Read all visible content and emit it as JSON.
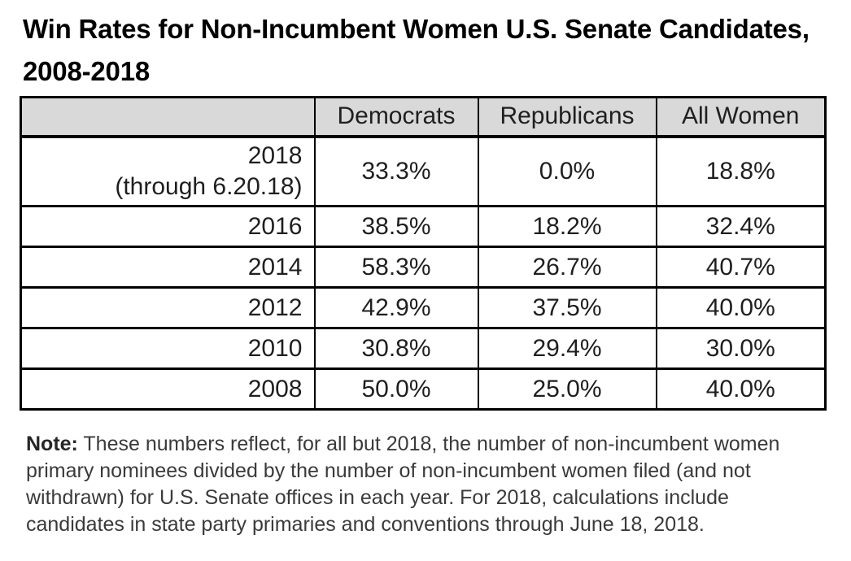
{
  "title": {
    "line1": "Win Rates for Non-Incumbent Women U.S. Senate Candidates,",
    "line2": "2008-2018"
  },
  "table": {
    "header_bg": "#d9d9d9",
    "border_color": "#000000",
    "columns": [
      "",
      "Democrats",
      "Republicans",
      "All Women"
    ],
    "rows": [
      {
        "year": "2018",
        "year_note": "(through 6.20.18)",
        "democrats": "33.3%",
        "republicans": "0.0%",
        "all_women": "18.8%"
      },
      {
        "year": "2016",
        "year_note": "",
        "democrats": "38.5%",
        "republicans": "18.2%",
        "all_women": "32.4%"
      },
      {
        "year": "2014",
        "year_note": "",
        "democrats": "58.3%",
        "republicans": "26.7%",
        "all_women": "40.7%"
      },
      {
        "year": "2012",
        "year_note": "",
        "democrats": "42.9%",
        "republicans": "37.5%",
        "all_women": "40.0%"
      },
      {
        "year": "2010",
        "year_note": "",
        "democrats": "30.8%",
        "republicans": "29.4%",
        "all_women": "30.0%"
      },
      {
        "year": "2008",
        "year_note": "",
        "democrats": "50.0%",
        "republicans": "25.0%",
        "all_women": "40.0%"
      }
    ]
  },
  "note": {
    "label": "Note:",
    "text": "These numbers reflect, for all but 2018, the number of non-incumbent women primary nominees divided by the number of non-incumbent women filed (and not withdrawn) for U.S. Senate offices in each year. For 2018, calculations include candidates in state party primaries and conventions through June 18, 2018."
  },
  "chart_data": {
    "type": "table",
    "title": "Win Rates for Non-Incumbent Women U.S. Senate Candidates, 2008-2018",
    "columns": [
      "",
      "Democrats",
      "Republicans",
      "All Women"
    ],
    "rows": [
      [
        "2018 (through 6.20.18)",
        "33.3%",
        "0.0%",
        "18.8%"
      ],
      [
        "2016",
        "38.5%",
        "18.2%",
        "32.4%"
      ],
      [
        "2014",
        "58.3%",
        "26.7%",
        "40.7%"
      ],
      [
        "2012",
        "42.9%",
        "37.5%",
        "40.0%"
      ],
      [
        "2010",
        "30.8%",
        "29.4%",
        "30.0%"
      ],
      [
        "2008",
        "50.0%",
        "25.0%",
        "40.0%"
      ]
    ],
    "values_numeric": {
      "categories": [
        "2018",
        "2016",
        "2014",
        "2012",
        "2010",
        "2008"
      ],
      "series": [
        {
          "name": "Democrats",
          "values": [
            33.3,
            38.5,
            58.3,
            42.9,
            30.8,
            50.0
          ]
        },
        {
          "name": "Republicans",
          "values": [
            0.0,
            18.2,
            26.7,
            37.5,
            29.4,
            25.0
          ]
        },
        {
          "name": "All Women",
          "values": [
            18.8,
            32.4,
            40.7,
            40.0,
            30.0,
            40.0
          ]
        }
      ],
      "unit": "%"
    },
    "note": "Note: These numbers reflect, for all but 2018, the number of non-incumbent women primary nominees divided by the number of non-incumbent women filed (and not withdrawn) for U.S. Senate offices in each year. For 2018, calculations include candidates in state party primaries and conventions through June 18, 2018."
  }
}
